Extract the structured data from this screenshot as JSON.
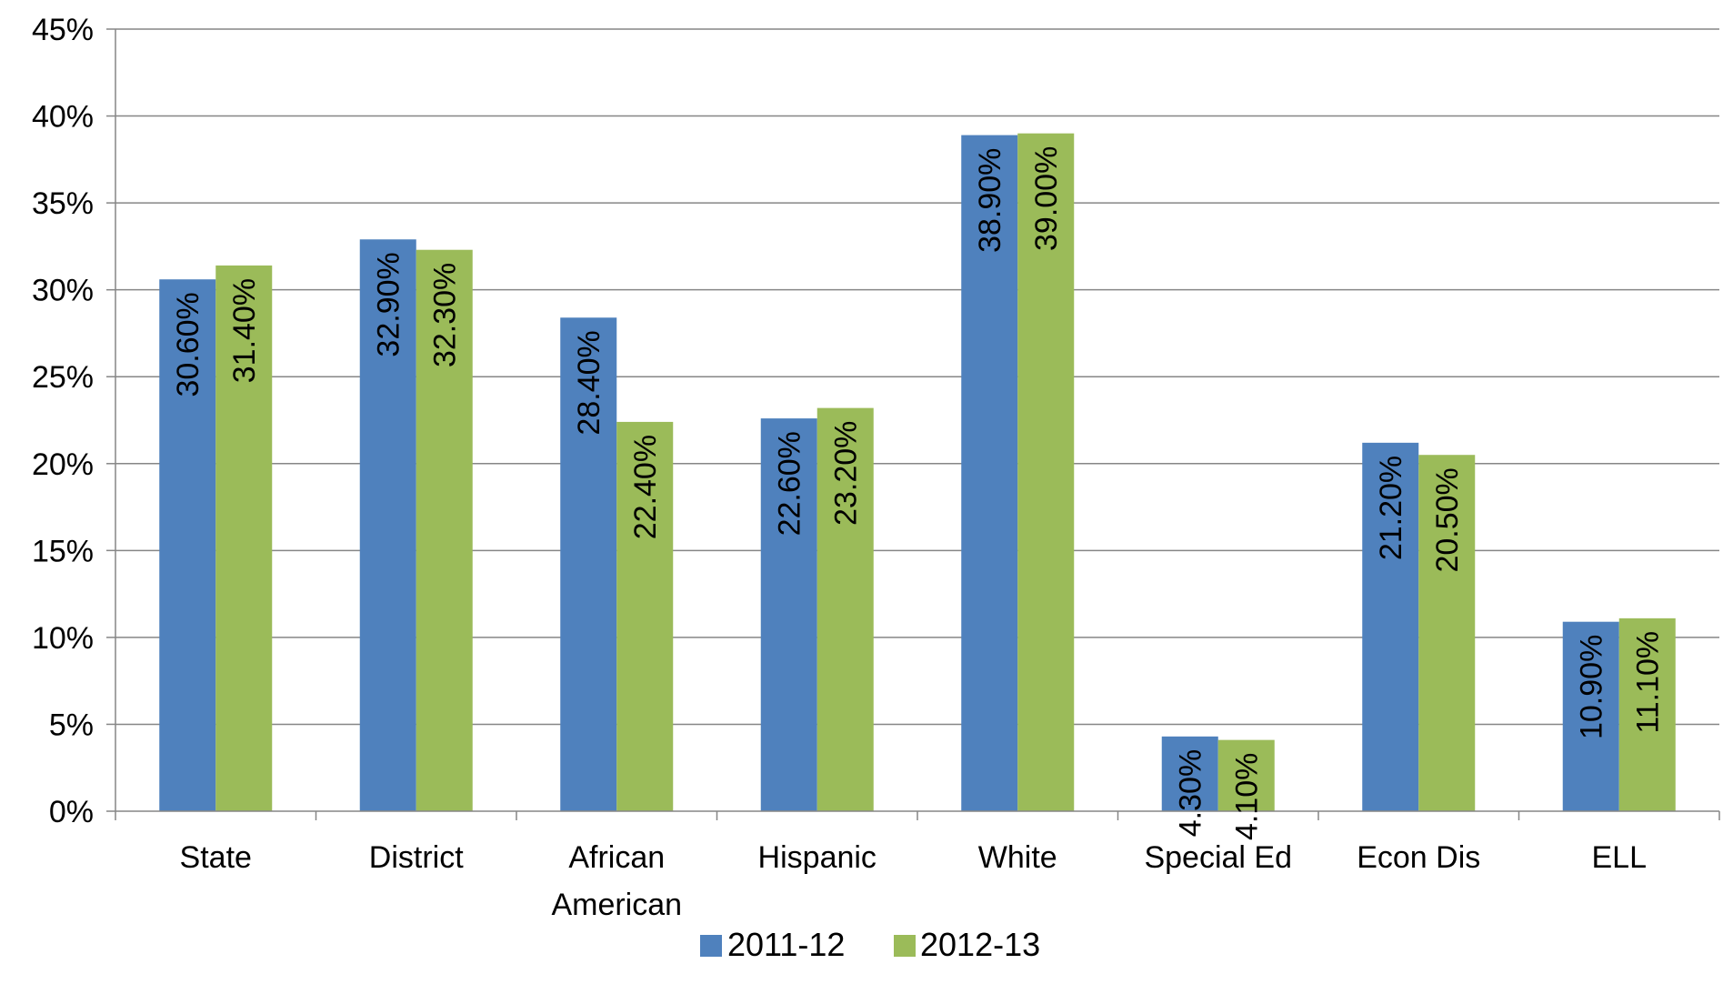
{
  "chart_data": {
    "type": "bar",
    "categories": [
      [
        "State"
      ],
      [
        "District"
      ],
      [
        "African",
        "American"
      ],
      [
        "Hispanic"
      ],
      [
        "White"
      ],
      [
        "Special Ed"
      ],
      [
        "Econ Dis"
      ],
      [
        "ELL"
      ]
    ],
    "series": [
      {
        "name": "2011-12",
        "color": "#4F81BD",
        "values": [
          30.6,
          32.9,
          28.4,
          22.6,
          38.9,
          4.3,
          21.2,
          10.9
        ],
        "labels": [
          "30.60%",
          "32.90%",
          "28.40%",
          "22.60%",
          "38.90%",
          "4.30%",
          "21.20%",
          "10.90%"
        ]
      },
      {
        "name": "2012-13",
        "color": "#9BBB59",
        "values": [
          31.4,
          32.3,
          22.4,
          23.2,
          39.0,
          4.1,
          20.5,
          11.1
        ],
        "labels": [
          "31.40%",
          "32.30%",
          "22.40%",
          "23.20%",
          "39.00%",
          "4.10%",
          "20.50%",
          "11.10%"
        ]
      }
    ],
    "y_ticks": [
      "0%",
      "5%",
      "10%",
      "15%",
      "20%",
      "25%",
      "30%",
      "35%",
      "40%",
      "45%"
    ],
    "ylim": [
      0,
      45
    ],
    "ystep": 5,
    "title": "",
    "xlabel": "",
    "ylabel": "",
    "grid": true,
    "legend_position": "bottom",
    "data_label_orientation": "vertical"
  }
}
